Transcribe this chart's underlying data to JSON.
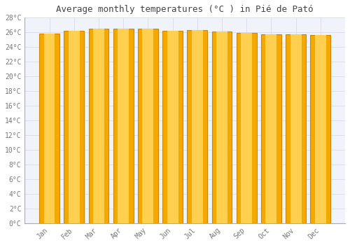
{
  "title": "Average monthly temperatures (°C ) in Pié́ de Pató",
  "title_display": "Average monthly temperatures (°C ) in Pié de Pató",
  "months": [
    "Jan",
    "Feb",
    "Mar",
    "Apr",
    "May",
    "Jun",
    "Jul",
    "Aug",
    "Sep",
    "Oct",
    "Nov",
    "Dec"
  ],
  "temperatures": [
    25.8,
    26.2,
    26.5,
    26.5,
    26.5,
    26.2,
    26.3,
    26.1,
    25.9,
    25.7,
    25.7,
    25.6
  ],
  "bar_color_center": "#FFD050",
  "bar_color_edge": "#F5A800",
  "bar_border_color": "#CC8800",
  "ylim": [
    0,
    28
  ],
  "yticks": [
    0,
    2,
    4,
    6,
    8,
    10,
    12,
    14,
    16,
    18,
    20,
    22,
    24,
    26,
    28
  ],
  "ylabel_suffix": "°C",
  "bg_color": "#FFFFFF",
  "plot_bg_color": "#F0F4FA",
  "grid_color": "#DDDDEE",
  "title_fontsize": 9,
  "tick_fontsize": 7,
  "bar_width": 0.82
}
